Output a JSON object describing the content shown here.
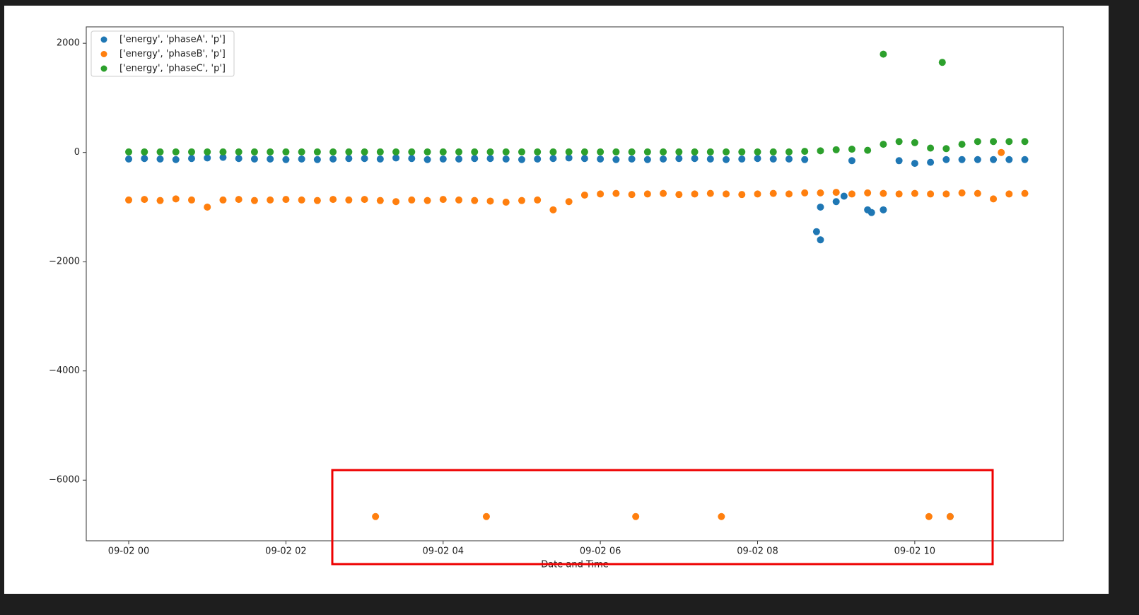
{
  "chart_data": {
    "type": "scatter",
    "xlabel": "Date and Time",
    "xlim": [
      -0.54,
      11.89
    ],
    "ylim": [
      -7110,
      2300
    ],
    "xticks": [
      {
        "value": 0,
        "label": "09-02 00"
      },
      {
        "value": 2,
        "label": "09-02 02"
      },
      {
        "value": 4,
        "label": "09-02 04"
      },
      {
        "value": 6,
        "label": "09-02 06"
      },
      {
        "value": 8,
        "label": "09-02 08"
      },
      {
        "value": 10,
        "label": "09-02 10"
      }
    ],
    "yticks": [
      {
        "value": -6000,
        "label": "−6000"
      },
      {
        "value": -4000,
        "label": "−4000"
      },
      {
        "value": -2000,
        "label": "−2000"
      },
      0,
      2000
    ],
    "legend": "upper left",
    "series": [
      {
        "name": "['energy', 'phaseA', 'p']",
        "color": "#1f77b4",
        "x": [
          0,
          0.2,
          0.4,
          0.6,
          0.8,
          1,
          1.2,
          1.4,
          1.6,
          1.8,
          2,
          2.2,
          2.4,
          2.6,
          2.8,
          3,
          3.2,
          3.4,
          3.6,
          3.8,
          4,
          4.2,
          4.4,
          4.6,
          4.8,
          5,
          5.2,
          5.4,
          5.6,
          5.8,
          6,
          6.2,
          6.4,
          6.6,
          6.8,
          7,
          7.2,
          7.4,
          7.6,
          7.8,
          8,
          8.2,
          8.4,
          8.6,
          8.8,
          9,
          9.2,
          9.4,
          9.6,
          9.8,
          10,
          10.2,
          10.4,
          10.6,
          10.8,
          11,
          11.2,
          11.4,
          10.45,
          8.75,
          8.8,
          9.1,
          9.45
        ],
        "values": [
          -120,
          -110,
          -120,
          -130,
          -110,
          -100,
          -90,
          -110,
          -120,
          -120,
          -130,
          -120,
          -130,
          -120,
          -110,
          -110,
          -120,
          -100,
          -110,
          -130,
          -120,
          -120,
          -110,
          -110,
          -120,
          -130,
          -120,
          -110,
          -100,
          -110,
          -120,
          -130,
          -120,
          -130,
          -120,
          -110,
          -110,
          -120,
          -130,
          -120,
          -110,
          -120,
          -120,
          -130,
          -1600,
          -900,
          -150,
          -1050,
          -1050,
          -150,
          -200,
          -180,
          -130,
          -130,
          -130,
          -130,
          -130,
          -130,
          -6667,
          -1450,
          -1000,
          -800,
          -1100
        ]
      },
      {
        "name": "['energy', 'phaseB', 'p']",
        "color": "#ff7f0e",
        "x": [
          0,
          0.2,
          0.4,
          0.6,
          0.8,
          1,
          1.2,
          1.4,
          1.6,
          1.8,
          2,
          2.2,
          2.4,
          2.6,
          2.8,
          3,
          3.2,
          3.4,
          3.6,
          3.8,
          4,
          4.2,
          4.4,
          4.6,
          4.8,
          5,
          5.2,
          5.4,
          5.6,
          5.8,
          6,
          6.2,
          6.4,
          6.6,
          6.8,
          7,
          7.2,
          7.4,
          7.6,
          7.8,
          8,
          8.2,
          8.4,
          8.6,
          8.8,
          9,
          9.2,
          9.4,
          9.6,
          9.8,
          10,
          10.2,
          10.4,
          10.6,
          10.8,
          11,
          11.2,
          11.4,
          3.14,
          4.55,
          6.45,
          7.54,
          10.18,
          10.45,
          11.1
        ],
        "values": [
          -870,
          -860,
          -880,
          -850,
          -870,
          -1000,
          -870,
          -860,
          -880,
          -870,
          -860,
          -870,
          -880,
          -860,
          -870,
          -860,
          -880,
          -900,
          -870,
          -880,
          -860,
          -870,
          -880,
          -890,
          -910,
          -880,
          -870,
          -1050,
          -900,
          -780,
          -760,
          -750,
          -770,
          -760,
          -750,
          -770,
          -760,
          -750,
          -760,
          -770,
          -760,
          -750,
          -760,
          -740,
          -740,
          -730,
          -760,
          -740,
          -750,
          -760,
          -750,
          -760,
          -760,
          -740,
          -750,
          -850,
          -760,
          -750,
          -6667,
          -6667,
          -6667,
          -6667,
          -6667,
          -6667,
          0
        ]
      },
      {
        "name": "['energy', 'phaseC', 'p']",
        "color": "#2ca02c",
        "x": [
          0,
          0.2,
          0.4,
          0.6,
          0.8,
          1,
          1.2,
          1.4,
          1.6,
          1.8,
          2,
          2.2,
          2.4,
          2.6,
          2.8,
          3,
          3.2,
          3.4,
          3.6,
          3.8,
          4,
          4.2,
          4.4,
          4.6,
          4.8,
          5,
          5.2,
          5.4,
          5.6,
          5.8,
          6,
          6.2,
          6.4,
          6.6,
          6.8,
          7,
          7.2,
          7.4,
          7.6,
          7.8,
          8,
          8.2,
          8.4,
          8.6,
          8.8,
          9,
          9.2,
          9.4,
          9.6,
          9.8,
          10,
          10.2,
          10.4,
          10.6,
          10.8,
          11,
          11.2,
          11.4,
          9.6,
          10.35
        ],
        "values": [
          10,
          10,
          10,
          10,
          10,
          10,
          10,
          10,
          10,
          10,
          10,
          10,
          10,
          10,
          10,
          10,
          10,
          10,
          10,
          10,
          10,
          10,
          10,
          10,
          10,
          10,
          10,
          10,
          10,
          10,
          10,
          10,
          10,
          10,
          10,
          10,
          10,
          10,
          10,
          10,
          10,
          10,
          10,
          20,
          30,
          50,
          60,
          40,
          150,
          200,
          180,
          80,
          70,
          150,
          200,
          200,
          200,
          200,
          1800,
          1650
        ]
      }
    ]
  }
}
